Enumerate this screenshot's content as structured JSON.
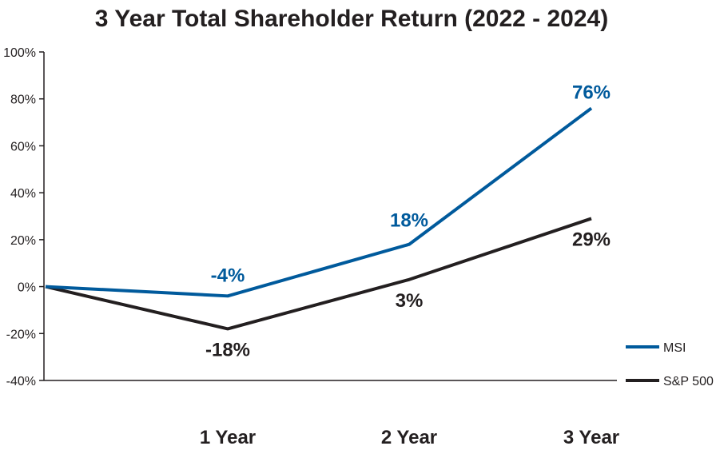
{
  "chart_data": {
    "type": "line",
    "title": "3 Year Total Shareholder Return (2022 - 2024)",
    "xlabel": "",
    "ylabel": "",
    "categories": [
      "",
      "1 Year",
      "2 Year",
      "3 Year"
    ],
    "ylim": [
      -40,
      100
    ],
    "yticks": [
      100,
      80,
      60,
      40,
      20,
      0,
      -20,
      -40
    ],
    "ytick_labels": [
      "100%",
      "80%",
      "60%",
      "40%",
      "20%",
      "0%",
      "-20%",
      "-40%"
    ],
    "grid": false,
    "legend_position": "bottom-right",
    "series": [
      {
        "name": "MSI",
        "color": "#005a9c",
        "values": [
          0,
          -4,
          18,
          76
        ],
        "labels": [
          "",
          "-4%",
          "18%",
          "76%"
        ]
      },
      {
        "name": "S&P 500",
        "color": "#231f20",
        "values": [
          0,
          -18,
          3,
          29
        ],
        "labels": [
          "",
          "-18%",
          "3%",
          "29%"
        ]
      }
    ]
  }
}
